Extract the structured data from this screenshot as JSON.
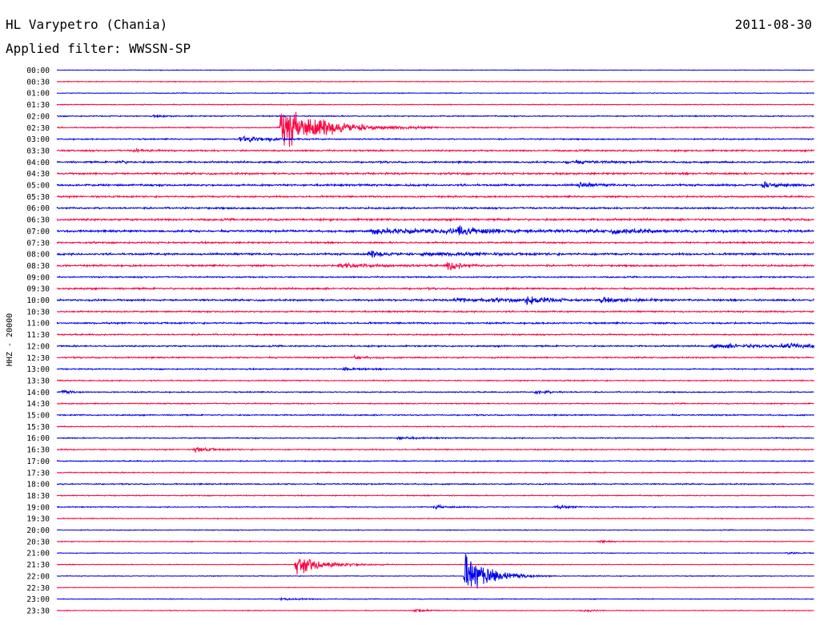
{
  "header": {
    "station": "HL Varypetro (Chania)",
    "date": "2011-08-30",
    "filter": "Applied filter: WWSSN-SP"
  },
  "chart_data": {
    "type": "line",
    "subtype": "helicorder",
    "title": "HL Varypetro (Chania)",
    "date": "2011-08-30",
    "filter": "WWSSN-SP",
    "ylabel": "HHZ - 20000",
    "row_labels": [
      "00:00",
      "00:30",
      "01:00",
      "01:30",
      "02:00",
      "02:30",
      "03:00",
      "03:30",
      "04:00",
      "04:30",
      "05:00",
      "05:30",
      "06:00",
      "06:30",
      "07:00",
      "07:30",
      "08:00",
      "08:30",
      "09:00",
      "09:30",
      "10:00",
      "10:30",
      "11:00",
      "11:30",
      "12:00",
      "12:30",
      "13:00",
      "13:30",
      "14:00",
      "14:30",
      "15:00",
      "15:30",
      "16:00",
      "16:30",
      "17:00",
      "17:30",
      "18:00",
      "18:30",
      "19:00",
      "19:30",
      "20:00",
      "20:30",
      "21:00",
      "21:30",
      "22:00",
      "22:30",
      "23:00",
      "23:30"
    ],
    "row_minutes": 30,
    "colors": [
      "#0000ee",
      "#ff0040"
    ],
    "noise_level": [
      0.5,
      0.6,
      0.6,
      0.7,
      0.9,
      0.9,
      1.0,
      1.3,
      1.4,
      1.5,
      1.6,
      1.3,
      1.4,
      1.6,
      1.7,
      1.3,
      1.6,
      1.4,
      1.1,
      1.4,
      1.5,
      1.2,
      1.3,
      1.1,
      1.2,
      1.1,
      1.0,
      0.9,
      0.9,
      0.9,
      1.0,
      0.8,
      0.9,
      0.9,
      0.9,
      0.8,
      1.0,
      0.8,
      0.8,
      0.7,
      0.7,
      0.6,
      0.6,
      0.6,
      0.6,
      0.5,
      0.6,
      0.6
    ],
    "events": [
      {
        "row": 4,
        "minute": 3.9,
        "amp": 1.5,
        "dur": 0.4
      },
      {
        "row": 5,
        "minute": 8.9,
        "amp": 36,
        "dur": 1.6
      },
      {
        "row": 6,
        "minute": 7.3,
        "amp": 7,
        "dur": 0.9
      },
      {
        "row": 7,
        "minute": 3.1,
        "amp": 2.5,
        "dur": 0.4
      },
      {
        "row": 8,
        "minute": 2.4,
        "amp": 2,
        "dur": 0.4
      },
      {
        "row": 8,
        "minute": 20.2,
        "amp": 2,
        "dur": 1.5
      },
      {
        "row": 10,
        "minute": 20.7,
        "amp": 3.5,
        "dur": 0.6
      },
      {
        "row": 10,
        "minute": 28.0,
        "amp": 5,
        "dur": 0.8
      },
      {
        "row": 14,
        "minute": 12.5,
        "amp": 4,
        "dur": 5.0
      },
      {
        "row": 14,
        "minute": 15.9,
        "amp": 8,
        "dur": 0.6
      },
      {
        "row": 14,
        "minute": 22.0,
        "amp": 3,
        "dur": 1.8
      },
      {
        "row": 16,
        "minute": 12.4,
        "amp": 5,
        "dur": 0.6
      },
      {
        "row": 16,
        "minute": 14.5,
        "amp": 3,
        "dur": 2.0
      },
      {
        "row": 17,
        "minute": 11.2,
        "amp": 4,
        "dur": 1.2
      },
      {
        "row": 17,
        "minute": 15.5,
        "amp": 8,
        "dur": 0.5
      },
      {
        "row": 20,
        "minute": 15.8,
        "amp": 3,
        "dur": 2.5
      },
      {
        "row": 20,
        "minute": 18.6,
        "amp": 8,
        "dur": 0.6
      },
      {
        "row": 20,
        "minute": 21.5,
        "amp": 3,
        "dur": 1.2
      },
      {
        "row": 24,
        "minute": 26.0,
        "amp": 3,
        "dur": 2.5
      },
      {
        "row": 24,
        "minute": 28.8,
        "amp": 6,
        "dur": 0.7
      },
      {
        "row": 25,
        "minute": 11.8,
        "amp": 3,
        "dur": 0.4
      },
      {
        "row": 26,
        "minute": 11.4,
        "amp": 3,
        "dur": 0.5
      },
      {
        "row": 28,
        "minute": 0.2,
        "amp": 3,
        "dur": 0.4
      },
      {
        "row": 28,
        "minute": 19.0,
        "amp": 3,
        "dur": 0.6
      },
      {
        "row": 32,
        "minute": 13.5,
        "amp": 3,
        "dur": 0.6
      },
      {
        "row": 33,
        "minute": 5.5,
        "amp": 5,
        "dur": 0.5
      },
      {
        "row": 38,
        "minute": 15.0,
        "amp": 3,
        "dur": 0.5
      },
      {
        "row": 38,
        "minute": 19.8,
        "amp": 3,
        "dur": 0.5
      },
      {
        "row": 41,
        "minute": 21.5,
        "amp": 2,
        "dur": 0.4
      },
      {
        "row": 42,
        "minute": 29.0,
        "amp": 2,
        "dur": 0.4
      },
      {
        "row": 43,
        "minute": 9.5,
        "amp": 17,
        "dur": 1.0
      },
      {
        "row": 44,
        "minute": 16.2,
        "amp": 34,
        "dur": 0.9
      },
      {
        "row": 46,
        "minute": 8.9,
        "amp": 2,
        "dur": 0.8
      },
      {
        "row": 47,
        "minute": 14.2,
        "amp": 3,
        "dur": 0.4
      },
      {
        "row": 47,
        "minute": 20.8,
        "amp": 2,
        "dur": 0.4
      }
    ],
    "grid": false,
    "legend": "none"
  }
}
